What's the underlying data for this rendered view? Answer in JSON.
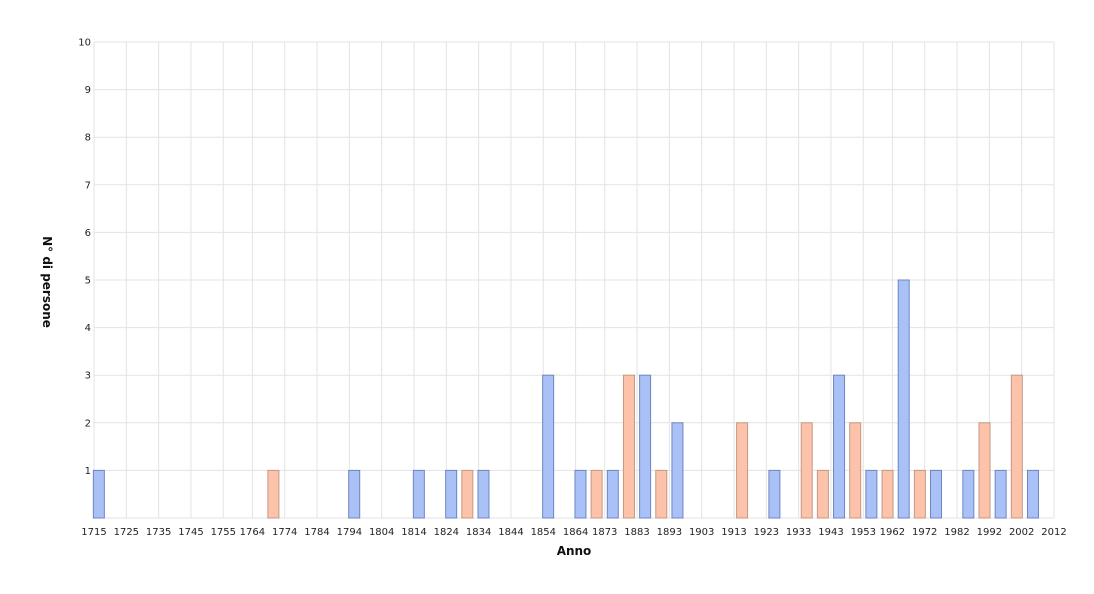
{
  "chart_data": {
    "type": "bar",
    "title": "",
    "xlabel": "Anno",
    "ylabel": "N° di persone",
    "xlim": [
      1715,
      2012
    ],
    "ylim": [
      0,
      10
    ],
    "grid": true,
    "legend": "none",
    "x_ticks": [
      "1715",
      "1725",
      "1735",
      "1745",
      "1755",
      "1764",
      "1774",
      "1784",
      "1794",
      "1804",
      "1814",
      "1824",
      "1834",
      "1844",
      "1854",
      "1864",
      "1873",
      "1883",
      "1893",
      "1903",
      "1913",
      "1923",
      "1933",
      "1943",
      "1953",
      "1962",
      "1972",
      "1982",
      "1992",
      "2002",
      "2012"
    ],
    "y_ticks": [
      "1",
      "2",
      "3",
      "4",
      "5",
      "6",
      "7",
      "8",
      "9",
      "10"
    ],
    "colors": {
      "blue": "#a9c1f6",
      "blue_border": "#6e86c0",
      "salmon": "#fcc2aa",
      "salmon_border": "#c79883"
    },
    "series": [
      {
        "color": "blue",
        "bars": [
          {
            "x": 1716.5,
            "value": 1
          },
          {
            "x": 1795.5,
            "value": 1
          },
          {
            "x": 1815.5,
            "value": 1
          },
          {
            "x": 1825.5,
            "value": 1
          },
          {
            "x": 1835.5,
            "value": 1
          },
          {
            "x": 1855.5,
            "value": 3
          },
          {
            "x": 1865.5,
            "value": 1
          },
          {
            "x": 1875.5,
            "value": 1
          },
          {
            "x": 1885.5,
            "value": 3
          },
          {
            "x": 1895.5,
            "value": 2
          },
          {
            "x": 1925.5,
            "value": 1
          },
          {
            "x": 1945.5,
            "value": 3
          },
          {
            "x": 1955.5,
            "value": 1
          },
          {
            "x": 1965.5,
            "value": 5
          },
          {
            "x": 1975.5,
            "value": 1
          },
          {
            "x": 1985.5,
            "value": 1
          },
          {
            "x": 1995.5,
            "value": 1
          },
          {
            "x": 2005.5,
            "value": 1
          }
        ]
      },
      {
        "color": "salmon",
        "bars": [
          {
            "x": 1770.5,
            "value": 1
          },
          {
            "x": 1830.5,
            "value": 1
          },
          {
            "x": 1870.5,
            "value": 1
          },
          {
            "x": 1880.5,
            "value": 3
          },
          {
            "x": 1890.5,
            "value": 1
          },
          {
            "x": 1915.5,
            "value": 2
          },
          {
            "x": 1935.5,
            "value": 2
          },
          {
            "x": 1940.5,
            "value": 1
          },
          {
            "x": 1950.5,
            "value": 2
          },
          {
            "x": 1960.5,
            "value": 1
          },
          {
            "x": 1970.5,
            "value": 1
          },
          {
            "x": 1990.5,
            "value": 2
          },
          {
            "x": 2000.5,
            "value": 3
          }
        ]
      }
    ]
  }
}
